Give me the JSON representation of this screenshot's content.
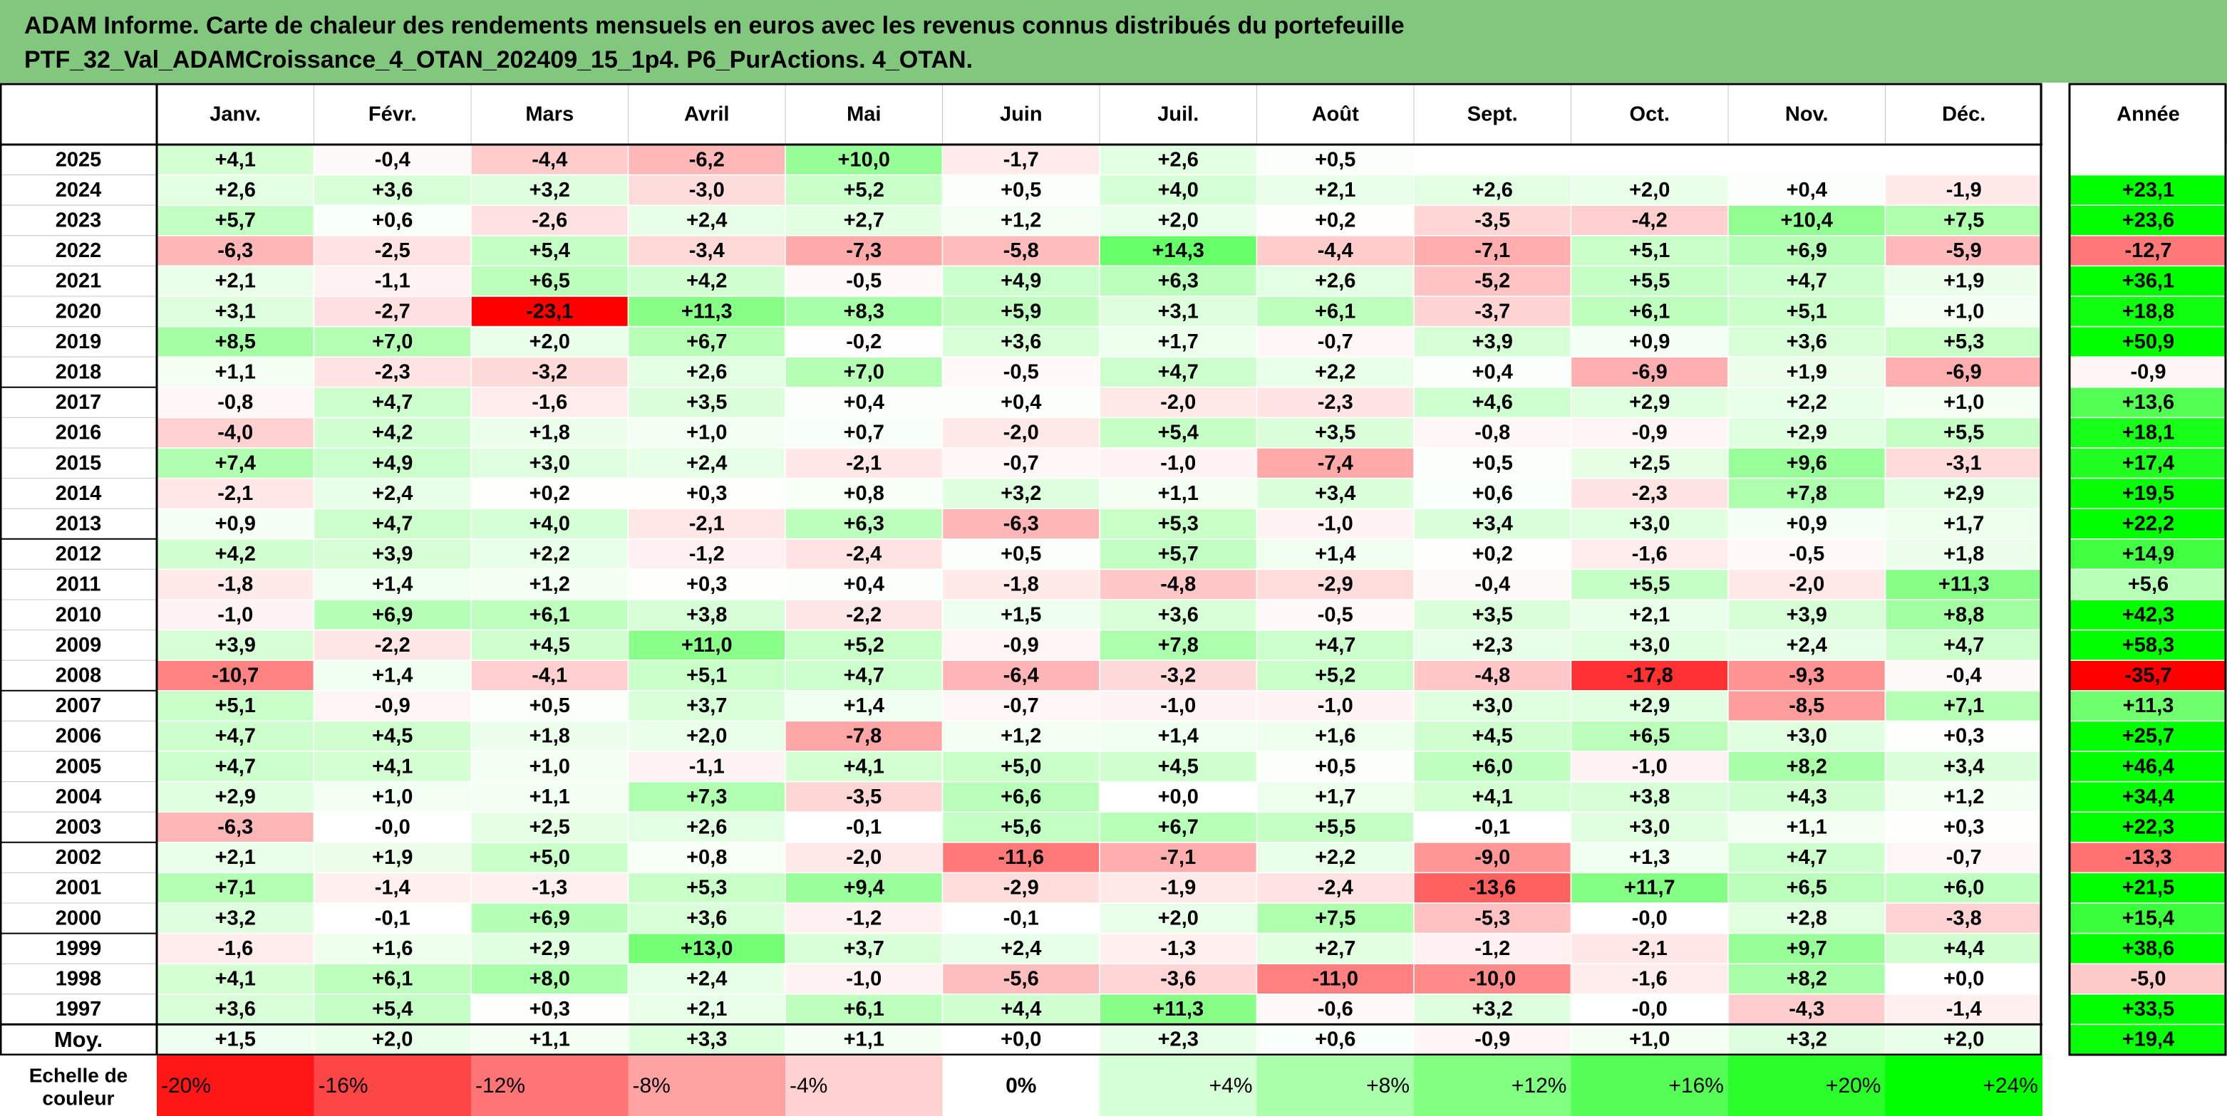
{
  "title": {
    "line1": "ADAM Informe. Carte de chaleur des rendements mensuels en euros avec les revenus connus distribués du portefeuille",
    "line2": "PTF_32_Val_ADAMCroissance_4_OTAN_202409_15_1p4. P6_PurActions. 4_OTAN."
  },
  "chart_data": {
    "type": "heatmap",
    "columns": [
      "Janv.",
      "Févr.",
      "Mars",
      "Avril",
      "Mai",
      "Juin",
      "Juil.",
      "Août",
      "Sept.",
      "Oct.",
      "Nov.",
      "Déc."
    ],
    "year_column_label": "Année",
    "rows": [
      {
        "year": "2025",
        "months": [
          "+4,1",
          "-0,4",
          "-4,4",
          "-6,2",
          "+10,0",
          "-1,7",
          "+2,6",
          "+0,5",
          "",
          "",
          "",
          ""
        ],
        "annual": ""
      },
      {
        "year": "2024",
        "months": [
          "+2,6",
          "+3,6",
          "+3,2",
          "-3,0",
          "+5,2",
          "+0,5",
          "+4,0",
          "+2,1",
          "+2,6",
          "+2,0",
          "+0,4",
          "-1,9"
        ],
        "annual": "+23,1"
      },
      {
        "year": "2023",
        "months": [
          "+5,7",
          "+0,6",
          "-2,6",
          "+2,4",
          "+2,7",
          "+1,2",
          "+2,0",
          "+0,2",
          "-3,5",
          "-4,2",
          "+10,4",
          "+7,5"
        ],
        "annual": "+23,6"
      },
      {
        "year": "2022",
        "months": [
          "-6,3",
          "-2,5",
          "+5,4",
          "-3,4",
          "-7,3",
          "-5,8",
          "+14,3",
          "-4,4",
          "-7,1",
          "+5,1",
          "+6,9",
          "-5,9"
        ],
        "annual": "-12,7"
      },
      {
        "year": "2021",
        "months": [
          "+2,1",
          "-1,1",
          "+6,5",
          "+4,2",
          "-0,5",
          "+4,9",
          "+6,3",
          "+2,6",
          "-5,2",
          "+5,5",
          "+4,7",
          "+1,9"
        ],
        "annual": "+36,1"
      },
      {
        "year": "2020",
        "months": [
          "+3,1",
          "-2,7",
          "-23,1",
          "+11,3",
          "+8,3",
          "+5,9",
          "+3,1",
          "+6,1",
          "-3,7",
          "+6,1",
          "+5,1",
          "+1,0"
        ],
        "annual": "+18,8"
      },
      {
        "year": "2019",
        "months": [
          "+8,5",
          "+7,0",
          "+2,0",
          "+6,7",
          "-0,2",
          "+3,6",
          "+1,7",
          "-0,7",
          "+3,9",
          "+0,9",
          "+3,6",
          "+5,3"
        ],
        "annual": "+50,9"
      },
      {
        "year": "2018",
        "months": [
          "+1,1",
          "-2,3",
          "-3,2",
          "+2,6",
          "+7,0",
          "-0,5",
          "+4,7",
          "+2,2",
          "+0,4",
          "-6,9",
          "+1,9",
          "-6,9"
        ],
        "annual": "-0,9"
      },
      {
        "year": "2017",
        "months": [
          "-0,8",
          "+4,7",
          "-1,6",
          "+3,5",
          "+0,4",
          "+0,4",
          "-2,0",
          "-2,3",
          "+4,6",
          "+2,9",
          "+2,2",
          "+1,0"
        ],
        "annual": "+13,6"
      },
      {
        "year": "2016",
        "months": [
          "-4,0",
          "+4,2",
          "+1,8",
          "+1,0",
          "+0,7",
          "-2,0",
          "+5,4",
          "+3,5",
          "-0,8",
          "-0,9",
          "+2,9",
          "+5,5"
        ],
        "annual": "+18,1"
      },
      {
        "year": "2015",
        "months": [
          "+7,4",
          "+4,9",
          "+3,0",
          "+2,4",
          "-2,1",
          "-0,7",
          "-1,0",
          "-7,4",
          "+0,5",
          "+2,5",
          "+9,6",
          "-3,1"
        ],
        "annual": "+17,4"
      },
      {
        "year": "2014",
        "months": [
          "-2,1",
          "+2,4",
          "+0,2",
          "+0,3",
          "+0,8",
          "+3,2",
          "+1,1",
          "+3,4",
          "+0,6",
          "-2,3",
          "+7,8",
          "+2,9"
        ],
        "annual": "+19,5"
      },
      {
        "year": "2013",
        "months": [
          "+0,9",
          "+4,7",
          "+4,0",
          "-2,1",
          "+6,3",
          "-6,3",
          "+5,3",
          "-1,0",
          "+3,4",
          "+3,0",
          "+0,9",
          "+1,7"
        ],
        "annual": "+22,2"
      },
      {
        "year": "2012",
        "months": [
          "+4,2",
          "+3,9",
          "+2,2",
          "-1,2",
          "-2,4",
          "+0,5",
          "+5,7",
          "+1,4",
          "+0,2",
          "-1,6",
          "-0,5",
          "+1,8"
        ],
        "annual": "+14,9"
      },
      {
        "year": "2011",
        "months": [
          "-1,8",
          "+1,4",
          "+1,2",
          "+0,3",
          "+0,4",
          "-1,8",
          "-4,8",
          "-2,9",
          "-0,4",
          "+5,5",
          "-2,0",
          "+11,3"
        ],
        "annual": "+5,6"
      },
      {
        "year": "2010",
        "months": [
          "-1,0",
          "+6,9",
          "+6,1",
          "+3,8",
          "-2,2",
          "+1,5",
          "+3,6",
          "-0,5",
          "+3,5",
          "+2,1",
          "+3,9",
          "+8,8"
        ],
        "annual": "+42,3"
      },
      {
        "year": "2009",
        "months": [
          "+3,9",
          "-2,2",
          "+4,5",
          "+11,0",
          "+5,2",
          "-0,9",
          "+7,8",
          "+4,7",
          "+2,3",
          "+3,0",
          "+2,4",
          "+4,7"
        ],
        "annual": "+58,3"
      },
      {
        "year": "2008",
        "months": [
          "-10,7",
          "+1,4",
          "-4,1",
          "+5,1",
          "+4,7",
          "-6,4",
          "-3,2",
          "+5,2",
          "-4,8",
          "-17,8",
          "-9,3",
          "-0,4"
        ],
        "annual": "-35,7"
      },
      {
        "year": "2007",
        "months": [
          "+5,1",
          "-0,9",
          "+0,5",
          "+3,7",
          "+1,4",
          "-0,7",
          "-1,0",
          "-1,0",
          "+3,0",
          "+2,9",
          "-8,5",
          "+7,1"
        ],
        "annual": "+11,3"
      },
      {
        "year": "2006",
        "months": [
          "+4,7",
          "+4,5",
          "+1,8",
          "+2,0",
          "-7,8",
          "+1,2",
          "+1,4",
          "+1,6",
          "+4,5",
          "+6,5",
          "+3,0",
          "+0,3"
        ],
        "annual": "+25,7"
      },
      {
        "year": "2005",
        "months": [
          "+4,7",
          "+4,1",
          "+1,0",
          "-1,1",
          "+4,1",
          "+5,0",
          "+4,5",
          "+0,5",
          "+6,0",
          "-1,0",
          "+8,2",
          "+3,4"
        ],
        "annual": "+46,4"
      },
      {
        "year": "2004",
        "months": [
          "+2,9",
          "+1,0",
          "+1,1",
          "+7,3",
          "-3,5",
          "+6,6",
          "+0,0",
          "+1,7",
          "+4,1",
          "+3,8",
          "+4,3",
          "+1,2"
        ],
        "annual": "+34,4"
      },
      {
        "year": "2003",
        "months": [
          "-6,3",
          "-0,0",
          "+2,5",
          "+2,6",
          "-0,1",
          "+5,6",
          "+6,7",
          "+5,5",
          "-0,1",
          "+3,0",
          "+1,1",
          "+0,3"
        ],
        "annual": "+22,3"
      },
      {
        "year": "2002",
        "months": [
          "+2,1",
          "+1,9",
          "+5,0",
          "+0,8",
          "-2,0",
          "-11,6",
          "-7,1",
          "+2,2",
          "-9,0",
          "+1,3",
          "+4,7",
          "-0,7"
        ],
        "annual": "-13,3"
      },
      {
        "year": "2001",
        "months": [
          "+7,1",
          "-1,4",
          "-1,3",
          "+5,3",
          "+9,4",
          "-2,9",
          "-1,9",
          "-2,4",
          "-13,6",
          "+11,7",
          "+6,5",
          "+6,0"
        ],
        "annual": "+21,5"
      },
      {
        "year": "2000",
        "months": [
          "+3,2",
          "-0,1",
          "+6,9",
          "+3,6",
          "-1,2",
          "-0,1",
          "+2,0",
          "+7,5",
          "-5,3",
          "-0,0",
          "+2,8",
          "-3,8"
        ],
        "annual": "+15,4"
      },
      {
        "year": "1999",
        "months": [
          "-1,6",
          "+1,6",
          "+2,9",
          "+13,0",
          "+3,7",
          "+2,4",
          "-1,3",
          "+2,7",
          "-1,2",
          "-2,1",
          "+9,7",
          "+4,4"
        ],
        "annual": "+38,6"
      },
      {
        "year": "1998",
        "months": [
          "+4,1",
          "+6,1",
          "+8,0",
          "+2,4",
          "-1,0",
          "-5,6",
          "-3,6",
          "-11,0",
          "-10,0",
          "-1,6",
          "+8,2",
          "+0,0"
        ],
        "annual": "-5,0"
      },
      {
        "year": "1997",
        "months": [
          "+3,6",
          "+5,4",
          "+0,3",
          "+2,1",
          "+6,1",
          "+4,4",
          "+11,3",
          "-0,6",
          "+3,2",
          "-0,0",
          "-4,3",
          "-1,4"
        ],
        "annual": "+33,5"
      }
    ],
    "average_row": {
      "label": "Moy.",
      "months": [
        "+1,5",
        "+2,0",
        "+1,1",
        "+3,3",
        "+1,1",
        "+0,0",
        "+2,3",
        "+0,6",
        "-0,9",
        "+1,0",
        "+3,2",
        "+2,0"
      ],
      "annual": "+19,4"
    },
    "color_scale": {
      "label_line1": "Echelle de",
      "label_line2": "couleur",
      "stops": [
        "-20%",
        "-16%",
        "-12%",
        "-8%",
        "-4%",
        "0%",
        "+4%",
        "+8%",
        "+12%",
        "+16%",
        "+20%",
        "+24%"
      ],
      "stop_values": [
        -20,
        -16,
        -12,
        -8,
        -4,
        0,
        4,
        8,
        12,
        16,
        20,
        24
      ]
    },
    "colors": {
      "negative": "#ff0000",
      "neutral": "#ffffff",
      "positive": "#00ff00",
      "title_background": "#82c77e"
    }
  }
}
